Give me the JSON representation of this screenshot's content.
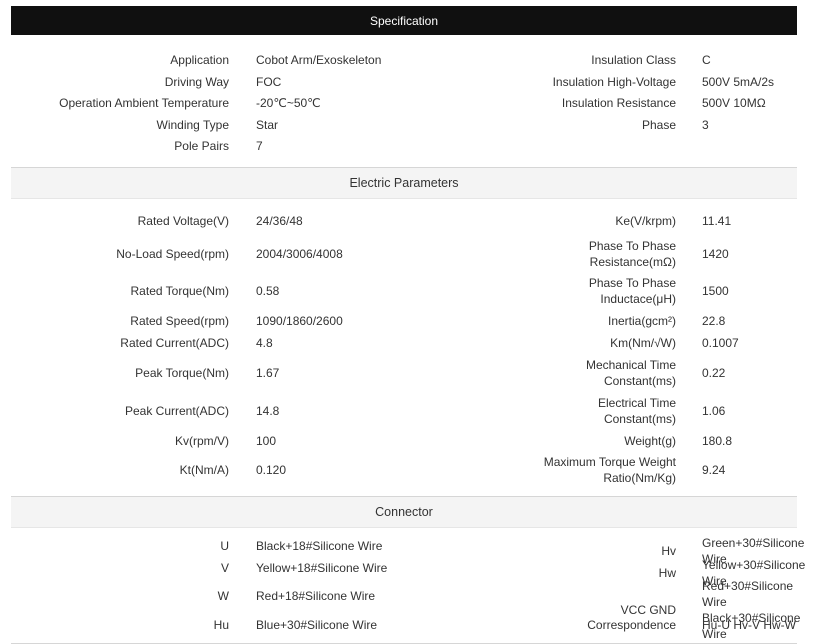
{
  "header": {
    "title": "Specification"
  },
  "spec": {
    "rows": [
      {
        "l1": "Application",
        "v1": "Cobot Arm/Exoskeleton",
        "l2": "Insulation Class",
        "v2": "C"
      },
      {
        "l1": "Driving Way",
        "v1": "FOC",
        "l2": "Insulation High-Voltage",
        "v2": "500V 5mA/2s"
      },
      {
        "l1": "Operation Ambient Temperature",
        "v1": "-20℃~50℃",
        "l2": "Insulation Resistance",
        "v2": "500V 10MΩ"
      },
      {
        "l1": "Winding Type",
        "v1": "Star",
        "l2": "Phase",
        "v2": "3"
      },
      {
        "l1": "Pole Pairs",
        "v1": "7",
        "l2": "",
        "v2": ""
      }
    ]
  },
  "electric": {
    "title": "Electric Parameters",
    "rows": [
      {
        "l1": "Rated Voltage(V)",
        "v1": "24/36/48",
        "l2a": "Ke(V/krpm)",
        "l2b": "",
        "v2": "11.41"
      },
      {
        "l1": "No-Load Speed(rpm)",
        "v1": "2004/3006/4008",
        "l2a": "Phase To Phase",
        "l2b": "Resistance(mΩ)",
        "v2": "1420"
      },
      {
        "l1": "Rated Torque(Nm)",
        "v1": "0.58",
        "l2a": "Phase To Phase",
        "l2b": "Inductace(μH)",
        "v2": "1500"
      },
      {
        "l1": "Rated Speed(rpm)",
        "v1": "1090/1860/2600",
        "l2a": "Inertia(gcm²)",
        "l2b": "",
        "v2": "22.8"
      },
      {
        "l1": "Rated Current(ADC)",
        "v1": "4.8",
        "l2a": "Km(Nm/√W)",
        "l2b": "",
        "v2": "0.1007"
      },
      {
        "l1": "Peak Torque(Nm)",
        "v1": "1.67",
        "l2a": "Mechanical Time",
        "l2b": "Constant(ms)",
        "v2": "0.22"
      },
      {
        "l1": "Peak Current(ADC)",
        "v1": "14.8",
        "l2a": "Electrical Time",
        "l2b": "Constant(ms)",
        "v2": "1.06"
      },
      {
        "l1": "Kv(rpm/V)",
        "v1": "100",
        "l2a": "Weight(g)",
        "l2b": "",
        "v2": "180.8"
      },
      {
        "l1": "Kt(Nm/A)",
        "v1": "0.120",
        "l2a": "Maximum Torque Weight",
        "l2b": "Ratio(Nm/Kg)",
        "v2": "9.24"
      }
    ]
  },
  "connector": {
    "title": "Connector",
    "rows": [
      {
        "l1": "U",
        "v1": "Black+18#Silicone Wire",
        "l2": "Hv",
        "v2a": "Green+30#Silicone Wire",
        "v2b": ""
      },
      {
        "l1": "V",
        "v1": "Yellow+18#Silicone Wire",
        "l2": "Hw",
        "v2a": "Yellow+30#Silicone Wire",
        "v2b": ""
      },
      {
        "l1": "W",
        "v1": "Red+18#Silicone Wire",
        "l2": "VCC GND",
        "v2a": "Red+30#Silicone Wire",
        "v2b": "Black+30#Silicone Wire"
      },
      {
        "l1": "Hu",
        "v1": "Blue+30#Silicone Wire",
        "l2": "Correspondence",
        "v2a": "Hu-U Hv-V Hw-W",
        "v2b": ""
      }
    ]
  }
}
